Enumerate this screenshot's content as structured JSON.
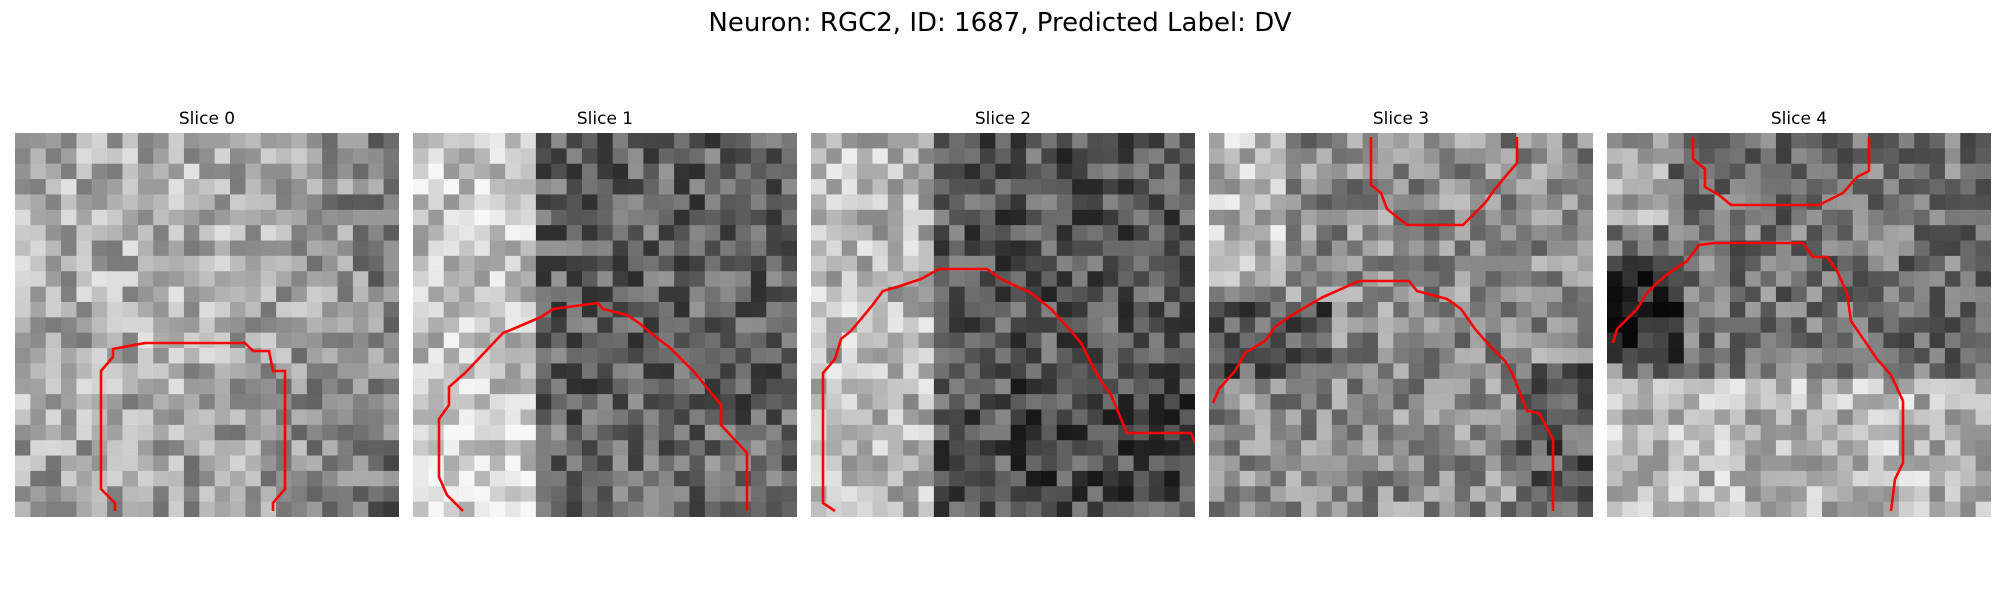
{
  "figure": {
    "title": "Neuron: RGC2, ID: 1687, Predicted Label: DV",
    "contour_color": "#ff0000",
    "panels": [
      {
        "title": "Slice 0",
        "tone": "mostly light noise, darker region to the right",
        "seed": 11
      },
      {
        "title": "Slice 1",
        "tone": "light left band, dark right region",
        "seed": 23
      },
      {
        "title": "Slice 2",
        "tone": "light left, dark center-right",
        "seed": 37
      },
      {
        "title": "Slice 3",
        "tone": "mixed mid-grey with dark lower right",
        "seed": 41
      },
      {
        "title": "Slice 4",
        "tone": "dark blobs upper left and center, light bottom",
        "seed": 53
      }
    ]
  }
}
